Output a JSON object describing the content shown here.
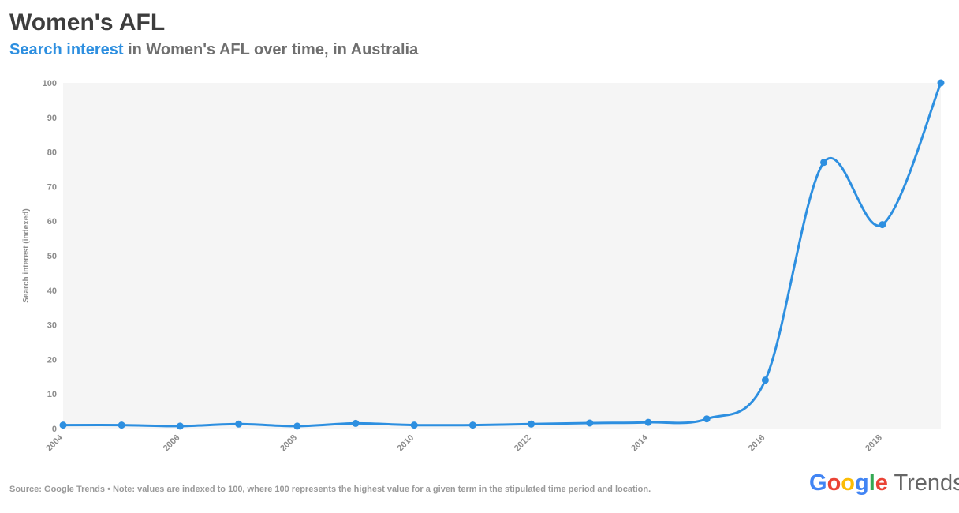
{
  "title": "Women's AFL",
  "subtitle": {
    "highlight": "Search interest",
    "rest": " in Women's AFL over time, in Australia"
  },
  "footer": {
    "source_note": "Source: Google Trends • Note: values are indexed to 100, where 100 represents the highest value for a given term in the stipulated time period and location."
  },
  "logo": {
    "google_letters": [
      "G",
      "o",
      "o",
      "g",
      "l",
      "e"
    ],
    "google_colors": [
      "#4285F4",
      "#EA4335",
      "#FBBC05",
      "#4285F4",
      "#34A853",
      "#EA4335"
    ],
    "trends": "Trends"
  },
  "colors": {
    "series": "#2d8fe0",
    "plot_background": "#f5f5f5",
    "axis_text": "#8c8c8c"
  },
  "chart_data": {
    "type": "line",
    "ylabel": "Search interest (indexed)",
    "xlabel": "",
    "x": [
      2004,
      2005,
      2006,
      2007,
      2008,
      2009,
      2010,
      2011,
      2012,
      2013,
      2014,
      2015,
      2016,
      2017,
      2018,
      2019
    ],
    "x_tick_labels": [
      "2004",
      "2006",
      "2008",
      "2010",
      "2012",
      "2014",
      "2016",
      "2018"
    ],
    "y_ticks": [
      0,
      10,
      20,
      30,
      40,
      50,
      60,
      70,
      80,
      90,
      100
    ],
    "xlim": [
      2004,
      2019
    ],
    "ylim": [
      0,
      100
    ],
    "series": [
      {
        "values": [
          1,
          1,
          0.7,
          1.3,
          0.7,
          1.5,
          1,
          1,
          1.3,
          1.6,
          1.8,
          2.8,
          14,
          77,
          59,
          100
        ]
      }
    ],
    "grid": false,
    "smooth": true
  }
}
